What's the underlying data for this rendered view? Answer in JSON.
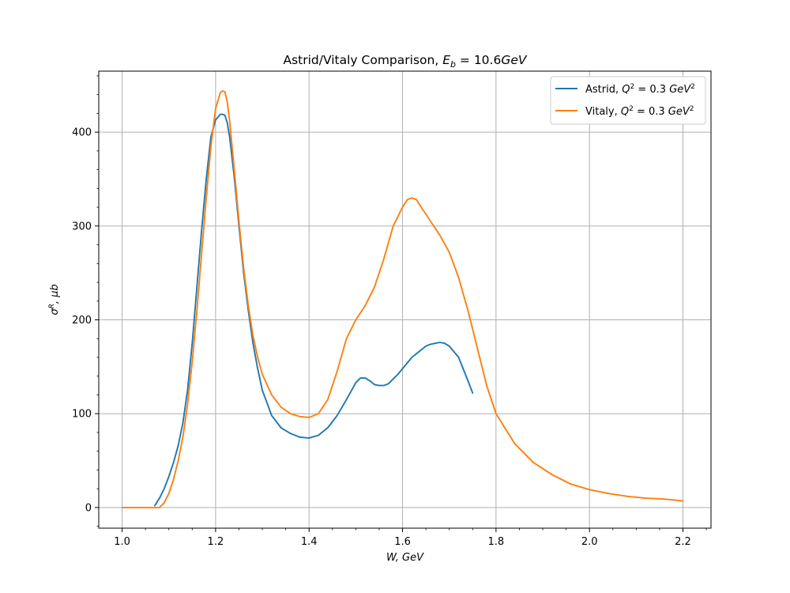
{
  "chart_data": {
    "type": "line",
    "title": "Astrid/Vitaly Comparison, ",
    "title_math": {
      "symbol": "E",
      "subscript": "b",
      "rest": " = 10.6",
      "unit": "GeV"
    },
    "xlabel": "W, GeV",
    "ylabel": "σR, μb",
    "xlabel_parts": {
      "main": "W, GeV"
    },
    "ylabel_parts": {
      "sigma": "σ",
      "sup": "R",
      "rest": ", μb"
    },
    "xlim": [
      0.95,
      2.26
    ],
    "ylim": [
      -22,
      465
    ],
    "xticks": [
      1.0,
      1.2,
      1.4,
      1.6,
      1.8,
      2.0,
      2.2
    ],
    "xtick_labels": [
      "1.0",
      "1.2",
      "1.4",
      "1.6",
      "1.8",
      "2.0",
      "2.2"
    ],
    "yticks": [
      0,
      100,
      200,
      300,
      400
    ],
    "ytick_labels": [
      "0",
      "100",
      "200",
      "300",
      "400"
    ],
    "grid": true,
    "legend_position": "top-right",
    "series": [
      {
        "name": "Astrid, Q2 = 0.3 GeV2",
        "legend": {
          "prefix": "Astrid, ",
          "q": "Q",
          "sup": "2",
          "mid": " = 0.3 ",
          "unit": "GeV",
          "unit_sup": "2"
        },
        "color": "#1f77b4",
        "x": [
          1.07,
          1.08,
          1.09,
          1.1,
          1.11,
          1.12,
          1.13,
          1.14,
          1.15,
          1.16,
          1.17,
          1.18,
          1.19,
          1.2,
          1.21,
          1.215,
          1.22,
          1.225,
          1.23,
          1.24,
          1.25,
          1.26,
          1.27,
          1.28,
          1.29,
          1.3,
          1.32,
          1.34,
          1.36,
          1.38,
          1.4,
          1.42,
          1.44,
          1.46,
          1.48,
          1.5,
          1.51,
          1.52,
          1.53,
          1.54,
          1.55,
          1.56,
          1.57,
          1.58,
          1.59,
          1.6,
          1.62,
          1.64,
          1.65,
          1.66,
          1.67,
          1.68,
          1.69,
          1.7,
          1.72,
          1.74,
          1.75
        ],
        "y": [
          2,
          10,
          20,
          33,
          48,
          66,
          90,
          125,
          175,
          235,
          295,
          350,
          395,
          413,
          419,
          419,
          418,
          410,
          395,
          352,
          300,
          250,
          210,
          175,
          148,
          125,
          98,
          85,
          79,
          75,
          74,
          77,
          85,
          98,
          115,
          133,
          138,
          138,
          135,
          131,
          130,
          130,
          132,
          137,
          142,
          148,
          160,
          168,
          172,
          174,
          175,
          176,
          175,
          172,
          160,
          135,
          122
        ]
      },
      {
        "name": "Vitaly, Q2 = 0.3 GeV2",
        "legend": {
          "prefix": "Vitaly, ",
          "q": "Q",
          "sup": "2",
          "mid": " = 0.3 ",
          "unit": "GeV",
          "unit_sup": "2"
        },
        "color": "#ff7f0e",
        "x": [
          1.0,
          1.02,
          1.04,
          1.06,
          1.08,
          1.09,
          1.1,
          1.11,
          1.12,
          1.13,
          1.14,
          1.15,
          1.16,
          1.17,
          1.18,
          1.19,
          1.2,
          1.21,
          1.215,
          1.22,
          1.225,
          1.23,
          1.24,
          1.25,
          1.26,
          1.27,
          1.28,
          1.29,
          1.3,
          1.32,
          1.34,
          1.36,
          1.38,
          1.4,
          1.42,
          1.44,
          1.46,
          1.48,
          1.5,
          1.52,
          1.54,
          1.56,
          1.58,
          1.6,
          1.61,
          1.62,
          1.63,
          1.64,
          1.66,
          1.68,
          1.7,
          1.72,
          1.74,
          1.76,
          1.78,
          1.8,
          1.84,
          1.88,
          1.92,
          1.96,
          2.0,
          2.04,
          2.08,
          2.12,
          2.16,
          2.2
        ],
        "y": [
          0,
          0,
          0,
          0,
          0,
          5,
          15,
          30,
          50,
          75,
          110,
          155,
          210,
          270,
          330,
          385,
          425,
          442,
          444,
          443,
          432,
          412,
          360,
          305,
          255,
          215,
          183,
          160,
          142,
          120,
          107,
          100,
          97,
          96,
          100,
          115,
          145,
          180,
          200,
          215,
          235,
          265,
          300,
          320,
          328,
          330,
          328,
          320,
          305,
          290,
          272,
          245,
          210,
          170,
          130,
          100,
          68,
          48,
          35,
          25,
          19,
          15,
          12,
          10,
          9,
          7
        ]
      }
    ]
  }
}
